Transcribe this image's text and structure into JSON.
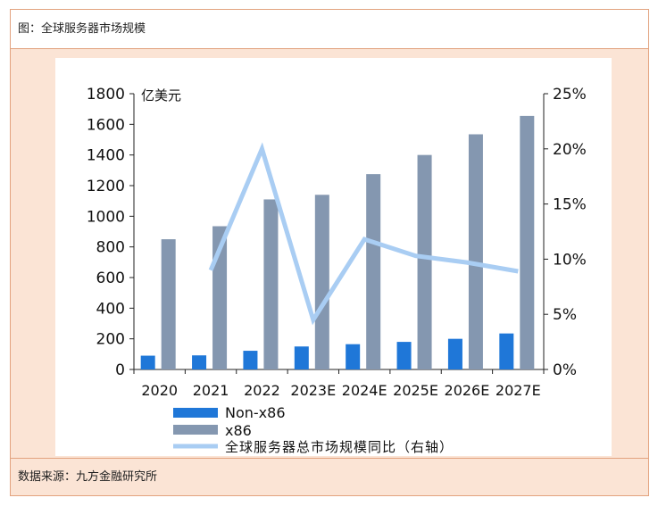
{
  "header": {
    "title": "图：全球服务器市场规模"
  },
  "footer": {
    "source": "数据来源：九方金融研究所"
  },
  "colors": {
    "non_x86": "#1f77d8",
    "x86": "#8497b0",
    "growth": "#a9cdf3",
    "border": "#e2a27e",
    "fill": "#fbe4d5"
  },
  "chart_data": {
    "type": "bar",
    "title": "",
    "ylabel": "亿美元",
    "categories": [
      "2020",
      "2021",
      "2022",
      "2023E",
      "2024E",
      "2025E",
      "2026E",
      "2027E"
    ],
    "ylim": [
      0,
      1800
    ],
    "y_ticks": [
      "0",
      "200",
      "400",
      "600",
      "800",
      "1000",
      "1200",
      "1400",
      "1600",
      "1800"
    ],
    "y2lim": [
      0,
      0.25
    ],
    "y2_ticks": [
      "0%",
      "5%",
      "10%",
      "15%",
      "20%",
      "25%"
    ],
    "series": [
      {
        "name": "Non-x86",
        "type": "bar",
        "axis": "left",
        "values": [
          90,
          92,
          122,
          150,
          165,
          180,
          200,
          235
        ]
      },
      {
        "name": "x86",
        "type": "bar",
        "axis": "left",
        "values": [
          850,
          935,
          1110,
          1140,
          1275,
          1400,
          1535,
          1655
        ]
      },
      {
        "name": "全球服务器总市场规模同比（右轴）",
        "type": "line",
        "axis": "right",
        "values": [
          null,
          0.09,
          0.2,
          0.045,
          0.118,
          0.103,
          0.097,
          0.089
        ]
      }
    ],
    "legend": {
      "position": "bottom"
    },
    "grid": false
  }
}
